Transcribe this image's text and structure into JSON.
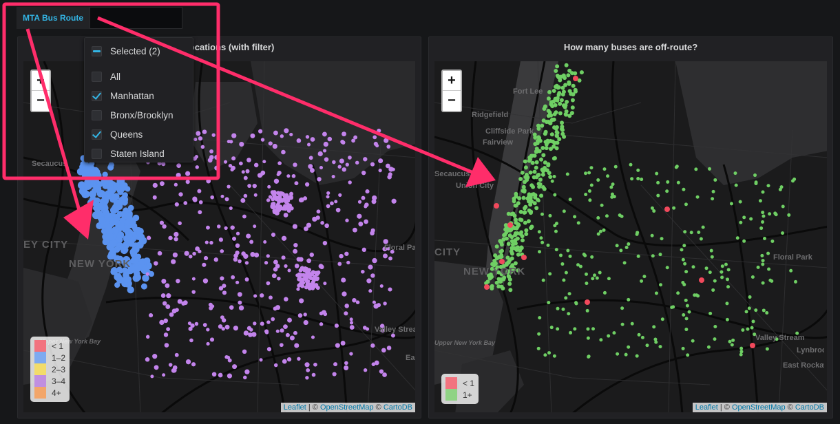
{
  "variable": {
    "label": "MTA Bus Route",
    "value": ""
  },
  "dropdown": {
    "header": "Selected (2)",
    "options": [
      {
        "label": "All",
        "checked": false
      },
      {
        "label": "Manhattan",
        "checked": true
      },
      {
        "label": "Bronx/Brooklyn",
        "checked": false
      },
      {
        "label": "Queens",
        "checked": true
      },
      {
        "label": "Staten Island",
        "checked": false
      }
    ]
  },
  "panels": {
    "left": {
      "title": "Bus Locations (with filter)",
      "zoom_in": "+",
      "zoom_out": "−",
      "legend": [
        {
          "label": "< 1",
          "color": "#f2737f"
        },
        {
          "label": "1–2",
          "color": "#7eaaf0"
        },
        {
          "label": "2–3",
          "color": "#f2dc6a"
        },
        {
          "label": "3–4",
          "color": "#c08fe0"
        },
        {
          "label": "4+",
          "color": "#f2a66a"
        }
      ],
      "places": [
        "Secaucus",
        "EY CITY",
        "NEW YORK",
        "Floral Park",
        "Valley Stream",
        "Upper New York Bay",
        "Eas"
      ],
      "point_colors": {
        "manhattan": "#5b93f0",
        "queens": "#c384ec"
      }
    },
    "right": {
      "title": "How many buses are off-route?",
      "zoom_in": "+",
      "zoom_out": "−",
      "legend": [
        {
          "label": "< 1",
          "color": "#f2737f"
        },
        {
          "label": "1+",
          "color": "#90d385"
        }
      ],
      "places": [
        "Fort Lee",
        "Ridgefield",
        "Cliffside Park",
        "Fairview",
        "Secaucus",
        "Union City",
        "CITY",
        "NEW YORK",
        "Floral Park",
        "Valley Stream",
        "Lynbrook",
        "East Rockaway",
        "Upper New York Bay"
      ],
      "point_colors": {
        "on_route": "#6fcf64",
        "off_route": "#f2495c"
      }
    }
  },
  "attribution": {
    "leaflet": "Leaflet",
    "sep": " | © ",
    "osm": "OpenStreetMap",
    "sep2": " © ",
    "carto": "CartoDB"
  },
  "annotation_color": "#ff2d6a"
}
